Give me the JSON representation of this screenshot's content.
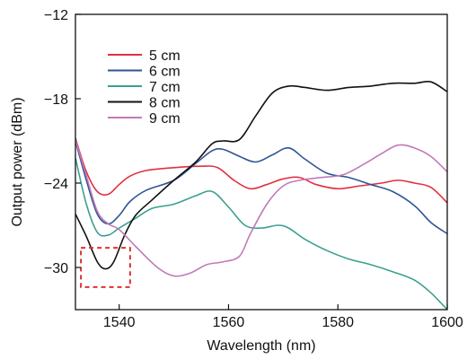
{
  "chart_data": {
    "type": "line",
    "title": "",
    "xlabel": "Wavelength (nm)",
    "ylabel": "Output power (dBm)",
    "xlim": [
      1532,
      1600
    ],
    "ylim": [
      -33,
      -12
    ],
    "xticks": [
      1540,
      1560,
      1580,
      1600
    ],
    "yticks": [
      -30,
      -24,
      -18,
      -12
    ],
    "legend_position": "top-left",
    "grid": false,
    "series": [
      {
        "name": "5 cm",
        "color": "#e03040",
        "points": [
          [
            1532,
            -20.8
          ],
          [
            1534,
            -23.2
          ],
          [
            1536,
            -24.6
          ],
          [
            1538,
            -24.8
          ],
          [
            1540,
            -24.1
          ],
          [
            1542,
            -23.5
          ],
          [
            1545,
            -23.1
          ],
          [
            1550,
            -22.9
          ],
          [
            1555,
            -22.8
          ],
          [
            1558,
            -22.9
          ],
          [
            1561,
            -23.8
          ],
          [
            1564,
            -24.4
          ],
          [
            1567,
            -24.1
          ],
          [
            1570,
            -23.7
          ],
          [
            1573,
            -23.6
          ],
          [
            1576,
            -24.1
          ],
          [
            1580,
            -24.4
          ],
          [
            1584,
            -24.2
          ],
          [
            1588,
            -24.0
          ],
          [
            1591,
            -23.8
          ],
          [
            1594,
            -24.0
          ],
          [
            1597,
            -24.3
          ],
          [
            1600,
            -25.4
          ]
        ]
      },
      {
        "name": "6 cm",
        "color": "#2f5596",
        "points": [
          [
            1532,
            -21.0
          ],
          [
            1534,
            -23.8
          ],
          [
            1536,
            -26.2
          ],
          [
            1538,
            -26.9
          ],
          [
            1540,
            -26.3
          ],
          [
            1542,
            -25.3
          ],
          [
            1545,
            -24.5
          ],
          [
            1550,
            -23.8
          ],
          [
            1554,
            -22.6
          ],
          [
            1557,
            -21.7
          ],
          [
            1559,
            -21.6
          ],
          [
            1562,
            -22.1
          ],
          [
            1565,
            -22.5
          ],
          [
            1568,
            -22.0
          ],
          [
            1571,
            -21.5
          ],
          [
            1574,
            -22.3
          ],
          [
            1578,
            -23.3
          ],
          [
            1582,
            -23.6
          ],
          [
            1586,
            -24.1
          ],
          [
            1590,
            -24.6
          ],
          [
            1594,
            -25.6
          ],
          [
            1597,
            -26.8
          ],
          [
            1600,
            -27.6
          ]
        ]
      },
      {
        "name": "7 cm",
        "color": "#3aa090",
        "points": [
          [
            1532,
            -22.2
          ],
          [
            1534,
            -25.5
          ],
          [
            1536,
            -27.5
          ],
          [
            1538,
            -27.7
          ],
          [
            1540,
            -27.2
          ],
          [
            1543,
            -26.5
          ],
          [
            1546,
            -25.8
          ],
          [
            1550,
            -25.5
          ],
          [
            1554,
            -24.9
          ],
          [
            1557,
            -24.6
          ],
          [
            1560,
            -25.7
          ],
          [
            1563,
            -27.0
          ],
          [
            1566,
            -27.2
          ],
          [
            1569,
            -27.0
          ],
          [
            1571,
            -27.2
          ],
          [
            1574,
            -28.0
          ],
          [
            1578,
            -28.8
          ],
          [
            1582,
            -29.4
          ],
          [
            1586,
            -29.8
          ],
          [
            1590,
            -30.3
          ],
          [
            1594,
            -30.9
          ],
          [
            1597,
            -31.8
          ],
          [
            1600,
            -33.0
          ]
        ]
      },
      {
        "name": "8 cm",
        "color": "#111111",
        "points": [
          [
            1532,
            -26.2
          ],
          [
            1534,
            -27.8
          ],
          [
            1536,
            -29.6
          ],
          [
            1537.5,
            -30.1
          ],
          [
            1539,
            -29.6
          ],
          [
            1541,
            -27.7
          ],
          [
            1543,
            -26.3
          ],
          [
            1546,
            -25.2
          ],
          [
            1550,
            -23.8
          ],
          [
            1554,
            -22.5
          ],
          [
            1557,
            -21.2
          ],
          [
            1559,
            -21.0
          ],
          [
            1562,
            -20.9
          ],
          [
            1565,
            -19.2
          ],
          [
            1568,
            -17.6
          ],
          [
            1571,
            -17.1
          ],
          [
            1574,
            -17.2
          ],
          [
            1578,
            -17.4
          ],
          [
            1582,
            -17.2
          ],
          [
            1586,
            -17.1
          ],
          [
            1590,
            -16.9
          ],
          [
            1594,
            -16.9
          ],
          [
            1597,
            -16.8
          ],
          [
            1600,
            -17.5
          ]
        ]
      },
      {
        "name": "9 cm",
        "color": "#c07ab8",
        "points": [
          [
            1532,
            -20.9
          ],
          [
            1534,
            -23.5
          ],
          [
            1536,
            -26.0
          ],
          [
            1538,
            -26.9
          ],
          [
            1540,
            -27.3
          ],
          [
            1543,
            -28.5
          ],
          [
            1547,
            -30.0
          ],
          [
            1550,
            -30.6
          ],
          [
            1553,
            -30.4
          ],
          [
            1556,
            -29.8
          ],
          [
            1559,
            -29.6
          ],
          [
            1562,
            -29.2
          ],
          [
            1564,
            -27.6
          ],
          [
            1567,
            -25.5
          ],
          [
            1570,
            -24.2
          ],
          [
            1573,
            -23.8
          ],
          [
            1577,
            -23.6
          ],
          [
            1581,
            -23.4
          ],
          [
            1585,
            -22.6
          ],
          [
            1588,
            -21.9
          ],
          [
            1591,
            -21.3
          ],
          [
            1594,
            -21.5
          ],
          [
            1597,
            -22.1
          ],
          [
            1600,
            -23.2
          ]
        ]
      }
    ],
    "annotation": {
      "type": "dashed-rectangle",
      "color": "#e03030",
      "x_range": [
        1533,
        1542
      ],
      "y_range": [
        -31.4,
        -28.6
      ]
    }
  }
}
